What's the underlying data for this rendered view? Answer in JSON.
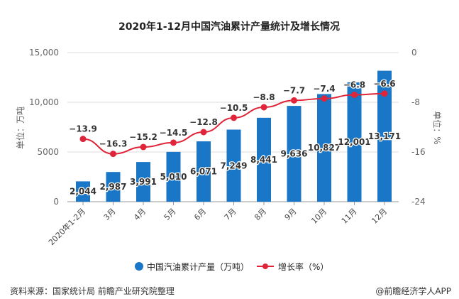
{
  "chart_data": {
    "type": "bar+line",
    "title": "2020年1-12月中国汽油累计产量统计及增长情况",
    "categories": [
      "2020年1-2月",
      "3月",
      "4月",
      "5月",
      "6月",
      "7月",
      "8月",
      "9月",
      "10月",
      "11月",
      "12月"
    ],
    "series": [
      {
        "name": "中国汽油累计产量（万吨）",
        "type": "bar",
        "axis": "left",
        "color": "#1a76c6",
        "values": [
          2044,
          2987,
          3991,
          5010,
          6071,
          7249,
          8441,
          9636,
          10827,
          12001,
          13171
        ],
        "labels": [
          "2,044",
          "2,987",
          "3,991",
          "5,010",
          "6,071",
          "7,249",
          "8,441",
          "9,636",
          "10,827",
          "12,001",
          "13,171"
        ]
      },
      {
        "name": "增长率（%）",
        "type": "line",
        "axis": "right",
        "color": "#e0243a",
        "values": [
          -13.9,
          -16.3,
          -15.2,
          -14.5,
          -12.8,
          -10.5,
          -8.8,
          -7.7,
          -7.4,
          -6.8,
          -6.6
        ]
      }
    ],
    "left_axis": {
      "label": "单位：万吨",
      "range": [
        0,
        15000
      ],
      "ticks": [
        "0",
        "5000",
        "10,000",
        "15,000"
      ],
      "tick_values": [
        0,
        5000,
        10000,
        15000
      ]
    },
    "right_axis": {
      "label": "单位：%",
      "range": [
        -24,
        0
      ],
      "ticks": [
        "-24",
        "-16",
        "-8",
        "0"
      ],
      "tick_values": [
        -24,
        -16,
        -8,
        0
      ]
    },
    "grid": true,
    "legend_placement": "bottom"
  },
  "footer": {
    "source": "资料来源：国家统计局 前瞻产业研究院整理",
    "brand": "@前瞻经济学人APP"
  }
}
